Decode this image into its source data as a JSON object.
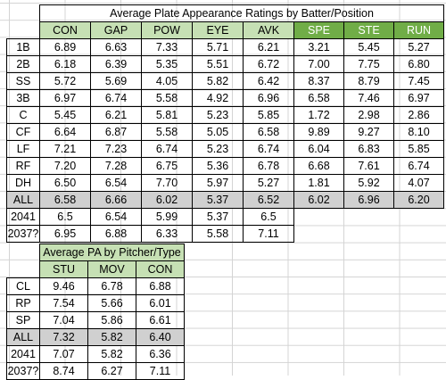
{
  "batter_table": {
    "title": "Average Plate Appearance Ratings by Batter/Position",
    "columns": [
      "CON",
      "GAP",
      "POW",
      "EYE",
      "AVK",
      "SPE",
      "STE",
      "RUN"
    ],
    "rows": [
      {
        "label": "1B",
        "values": [
          "6.89",
          "6.63",
          "7.33",
          "5.71",
          "6.21",
          "3.21",
          "5.45",
          "5.27"
        ]
      },
      {
        "label": "2B",
        "values": [
          "6.18",
          "6.39",
          "5.35",
          "5.51",
          "6.72",
          "7.00",
          "7.75",
          "6.80"
        ]
      },
      {
        "label": "SS",
        "values": [
          "5.72",
          "5.69",
          "4.05",
          "5.82",
          "6.42",
          "8.37",
          "8.79",
          "7.45"
        ]
      },
      {
        "label": "3B",
        "values": [
          "6.97",
          "6.74",
          "5.58",
          "4.92",
          "6.96",
          "6.58",
          "7.46",
          "6.97"
        ]
      },
      {
        "label": "C",
        "values": [
          "5.45",
          "6.21",
          "5.81",
          "5.23",
          "5.85",
          "1.72",
          "2.98",
          "2.86"
        ]
      },
      {
        "label": "CF",
        "values": [
          "6.64",
          "6.87",
          "5.58",
          "5.05",
          "6.58",
          "9.89",
          "9.27",
          "8.10"
        ]
      },
      {
        "label": "LF",
        "values": [
          "7.21",
          "7.23",
          "6.74",
          "5.23",
          "6.74",
          "6.04",
          "6.83",
          "5.85"
        ]
      },
      {
        "label": "RF",
        "values": [
          "7.20",
          "7.28",
          "6.75",
          "5.36",
          "6.78",
          "6.68",
          "7.61",
          "6.74"
        ]
      },
      {
        "label": "DH",
        "values": [
          "6.50",
          "6.54",
          "7.70",
          "5.97",
          "5.27",
          "1.81",
          "5.92",
          "4.07"
        ]
      }
    ],
    "all_row": {
      "label": "ALL",
      "values": [
        "6.58",
        "6.66",
        "6.02",
        "5.37",
        "6.52",
        "6.02",
        "6.96",
        "6.20"
      ]
    },
    "extra_rows": [
      {
        "label": "2041",
        "values": [
          "6.5",
          "6.54",
          "5.99",
          "5.37",
          "6.5"
        ]
      },
      {
        "label": "2037?",
        "values": [
          "6.95",
          "6.88",
          "6.33",
          "5.58",
          "7.11"
        ]
      }
    ]
  },
  "pitcher_table": {
    "title": "Average PA by Pitcher/Type",
    "columns": [
      "STU",
      "MOV",
      "CON"
    ],
    "rows": [
      {
        "label": "CL",
        "values": [
          "9.46",
          "6.78",
          "6.88"
        ]
      },
      {
        "label": "RP",
        "values": [
          "7.54",
          "5.66",
          "6.01"
        ]
      },
      {
        "label": "SP",
        "values": [
          "7.04",
          "5.86",
          "6.61"
        ]
      }
    ],
    "all_row": {
      "label": "ALL",
      "values": [
        "7.32",
        "5.82",
        "6.40"
      ]
    },
    "extra_rows": [
      {
        "label": "2041",
        "values": [
          "7.07",
          "5.82",
          "6.36"
        ]
      },
      {
        "label": "2037?",
        "values": [
          "8.74",
          "6.27",
          "7.11"
        ]
      }
    ]
  },
  "colors": {
    "header_light_green": "#c6e0b4",
    "header_dark_green": "#70ad47",
    "all_row_gray": "#d0d0d0",
    "gridline": "#d4d4d4"
  }
}
